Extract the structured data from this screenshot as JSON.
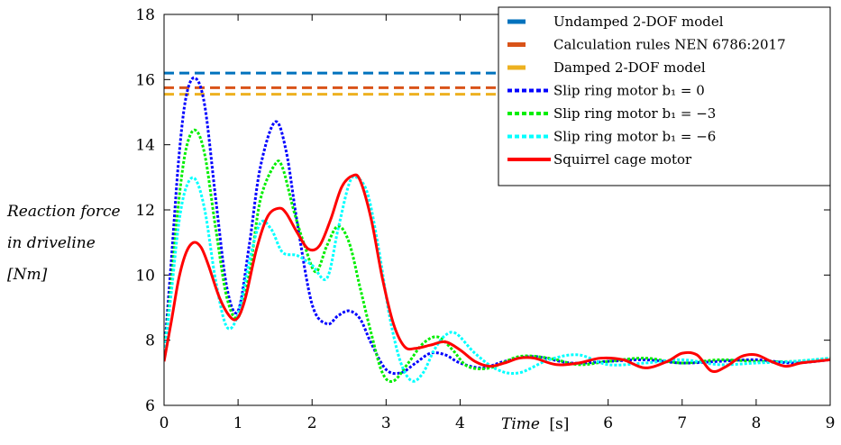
{
  "chart_data": {
    "type": "line",
    "x_label_italic": "Time",
    "x_label_unit": "[s]",
    "y_label_lines": [
      "Reaction force",
      "in driveline",
      "[Nm]"
    ],
    "xlim": [
      0,
      9
    ],
    "ylim": [
      6,
      18
    ],
    "x_ticks": [
      0,
      1,
      2,
      3,
      4,
      6,
      7,
      8,
      9
    ],
    "y_ticks": [
      6,
      8,
      10,
      12,
      14,
      16,
      18
    ],
    "legend_position": "top-right",
    "horizontal_lines": [
      {
        "name": "Undamped 2-DOF model",
        "value": 16.2,
        "color": "#0072BD",
        "style": "dashed"
      },
      {
        "name": "Calculation rules NEN 6786:2017",
        "value": 15.75,
        "color": "#D95319",
        "style": "dashed"
      },
      {
        "name": "Damped 2-DOF model",
        "value": 15.55,
        "color": "#EDB120",
        "style": "dashed"
      }
    ],
    "series": [
      {
        "name": "Slip ring motor b₁ = 0",
        "color": "#0000FF",
        "style": "dotted",
        "x": [
          0,
          0.1,
          0.2,
          0.3,
          0.42,
          0.55,
          0.7,
          0.85,
          1.0,
          1.15,
          1.3,
          1.5,
          1.65,
          1.8,
          2.0,
          2.2,
          2.35,
          2.5,
          2.65,
          2.8,
          3.0,
          3.2,
          3.4,
          3.6,
          3.8,
          4.0,
          4.3,
          4.6,
          5.0,
          5.5,
          6.0,
          6.5,
          7.0,
          7.5,
          8.0,
          8.5,
          9.0
        ],
        "y": [
          7.5,
          10.5,
          13.6,
          15.5,
          16.05,
          15.2,
          12.3,
          9.6,
          8.9,
          10.9,
          13.3,
          14.7,
          13.8,
          11.6,
          9.1,
          8.5,
          8.75,
          8.9,
          8.65,
          7.9,
          7.1,
          7.0,
          7.3,
          7.6,
          7.55,
          7.3,
          7.15,
          7.35,
          7.5,
          7.3,
          7.35,
          7.4,
          7.3,
          7.35,
          7.4,
          7.3,
          7.4
        ]
      },
      {
        "name": "Slip ring motor b₁ = −3",
        "color": "#00EE00",
        "style": "dotted",
        "x": [
          0,
          0.1,
          0.2,
          0.3,
          0.42,
          0.55,
          0.7,
          0.85,
          1.0,
          1.15,
          1.3,
          1.5,
          1.6,
          1.75,
          1.9,
          2.05,
          2.2,
          2.35,
          2.5,
          2.65,
          2.8,
          2.95,
          3.1,
          3.3,
          3.5,
          3.7,
          3.9,
          4.1,
          4.4,
          4.8,
          5.2,
          5.6,
          6.0,
          6.5,
          7.0,
          7.5,
          8.0,
          8.5,
          9.0
        ],
        "y": [
          7.5,
          9.8,
          12.3,
          13.9,
          14.45,
          13.7,
          11.4,
          9.3,
          8.7,
          10.0,
          12.3,
          13.4,
          13.3,
          12.0,
          10.9,
          10.1,
          10.9,
          11.5,
          11.0,
          9.6,
          8.2,
          7.0,
          6.75,
          7.3,
          7.9,
          8.1,
          7.7,
          7.2,
          7.15,
          7.5,
          7.45,
          7.25,
          7.35,
          7.45,
          7.3,
          7.4,
          7.35,
          7.35,
          7.45
        ]
      },
      {
        "name": "Slip ring motor b₁ = −6",
        "color": "#00FFFF",
        "style": "dotted",
        "x": [
          0,
          0.1,
          0.2,
          0.3,
          0.42,
          0.55,
          0.7,
          0.85,
          1.0,
          1.15,
          1.3,
          1.45,
          1.6,
          1.8,
          2.0,
          2.2,
          2.35,
          2.5,
          2.6,
          2.75,
          2.9,
          3.05,
          3.2,
          3.35,
          3.5,
          3.65,
          3.8,
          3.95,
          4.2,
          4.5,
          4.8,
          5.2,
          5.6,
          6.0,
          6.5,
          7.0,
          7.5,
          8.0,
          8.5,
          9.0
        ],
        "y": [
          7.5,
          9.5,
          11.6,
          12.7,
          12.95,
          12.0,
          9.8,
          8.4,
          8.8,
          10.4,
          11.6,
          11.4,
          10.7,
          10.6,
          10.3,
          9.9,
          11.4,
          12.8,
          13.0,
          12.5,
          10.8,
          8.7,
          7.3,
          6.75,
          7.0,
          7.7,
          8.15,
          8.2,
          7.6,
          7.1,
          7.0,
          7.4,
          7.55,
          7.25,
          7.3,
          7.4,
          7.25,
          7.3,
          7.35,
          7.45
        ]
      },
      {
        "name": "Squirrel cage motor",
        "color": "#FF0000",
        "style": "solid",
        "x": [
          0,
          0.1,
          0.2,
          0.3,
          0.4,
          0.5,
          0.6,
          0.75,
          0.9,
          1.0,
          1.1,
          1.25,
          1.4,
          1.55,
          1.65,
          1.8,
          1.95,
          2.1,
          2.25,
          2.4,
          2.55,
          2.65,
          2.8,
          2.95,
          3.1,
          3.25,
          3.4,
          3.6,
          3.8,
          4.0,
          4.2,
          4.4,
          4.6,
          4.8,
          5.0,
          5.3,
          5.6,
          5.9,
          6.2,
          6.5,
          6.8,
          7.0,
          7.2,
          7.4,
          7.6,
          7.8,
          8.0,
          8.2,
          8.4,
          8.6,
          8.8,
          9.0
        ],
        "y": [
          7.35,
          8.6,
          9.9,
          10.7,
          11.0,
          10.85,
          10.3,
          9.3,
          8.7,
          8.7,
          9.3,
          10.8,
          11.8,
          12.05,
          11.9,
          11.3,
          10.8,
          10.9,
          11.7,
          12.7,
          13.05,
          12.9,
          11.7,
          9.9,
          8.5,
          7.8,
          7.75,
          7.85,
          7.95,
          7.7,
          7.35,
          7.2,
          7.3,
          7.45,
          7.45,
          7.25,
          7.3,
          7.45,
          7.4,
          7.15,
          7.35,
          7.6,
          7.55,
          7.05,
          7.2,
          7.5,
          7.55,
          7.35,
          7.2,
          7.3,
          7.35,
          7.4
        ]
      }
    ]
  }
}
